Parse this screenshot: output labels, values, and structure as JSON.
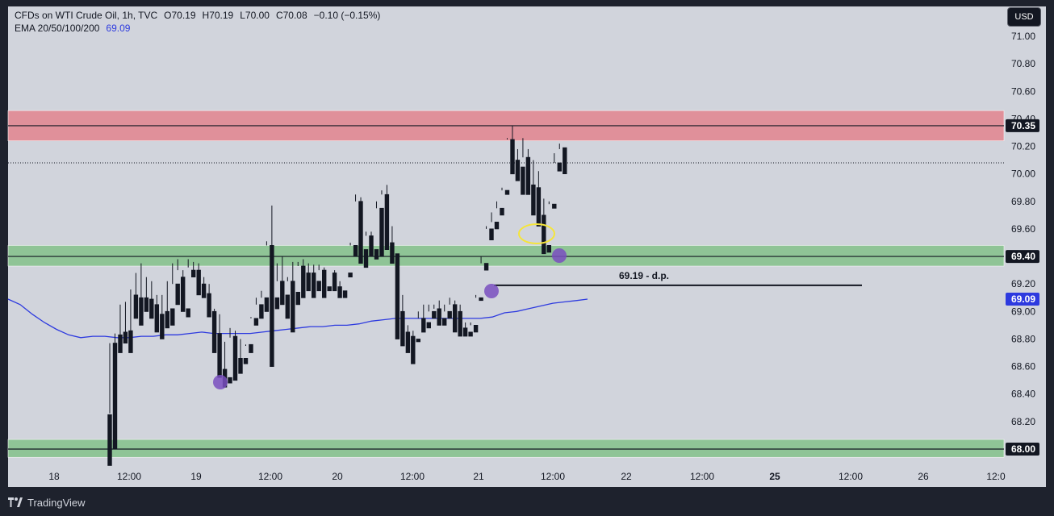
{
  "header": {
    "symbol_line": "CFDs on WTI Crude Oil, 1h, TVC",
    "open": "O70.19",
    "high": "H70.19",
    "low": "L70.00",
    "close": "C70.08",
    "change": "−0.10 (−0.15%)",
    "indicator_name": "EMA 20/50/100/200",
    "indicator_value": "69.09"
  },
  "currency_button": "USD",
  "brand": "TradingView",
  "colors": {
    "background": "#d1d4dc",
    "frame": "#1e222d",
    "resistance_zone": "#e0909a",
    "support_zone": "#8fc496",
    "ema": "#2d3adf",
    "marker": "#7a4fc0",
    "highlight": "#f5e53a"
  },
  "price_labels": {
    "resistance": "70.35",
    "support": "69.40",
    "ema": "69.09",
    "floor": "68.00"
  },
  "annotation": {
    "text": "69.19 - d.p."
  },
  "chart_data": {
    "type": "candlestick",
    "ylim": [
      67.88,
      71.12
    ],
    "yticks": [
      "71.00",
      "70.80",
      "70.60",
      "70.40",
      "70.20",
      "70.00",
      "69.80",
      "69.60",
      "69.40",
      "69.20",
      "69.00",
      "68.80",
      "68.60",
      "68.40",
      "68.20",
      "68.00"
    ],
    "xticks": [
      {
        "label": "18",
        "bold": false
      },
      {
        "label": "12:00",
        "bold": false
      },
      {
        "label": "19",
        "bold": false
      },
      {
        "label": "12:00",
        "bold": false
      },
      {
        "label": "20",
        "bold": false
      },
      {
        "label": "12:00",
        "bold": false
      },
      {
        "label": "21",
        "bold": false
      },
      {
        "label": "12:00",
        "bold": false
      },
      {
        "label": "22",
        "bold": false
      },
      {
        "label": "12:00",
        "bold": false
      },
      {
        "label": "25",
        "bold": true
      },
      {
        "label": "12:00",
        "bold": false
      },
      {
        "label": "26",
        "bold": false
      },
      {
        "label": "12:0",
        "bold": false
      }
    ],
    "zones": [
      {
        "name": "resistance",
        "from": 70.24,
        "to": 70.46,
        "line": 70.35
      },
      {
        "name": "support",
        "from": 69.33,
        "to": 69.48,
        "line": 69.4
      },
      {
        "name": "floor",
        "from": 67.94,
        "to": 68.07,
        "line": 68.0
      }
    ],
    "current_price": 70.08,
    "dp_level": 69.19,
    "candles": [
      [
        68.25,
        68.77,
        68.26,
        67.88
      ],
      [
        68.77,
        68.84,
        68.75,
        68.0
      ],
      [
        68.83,
        69.05,
        68.79,
        68.7
      ],
      [
        68.85,
        69.07,
        68.85,
        68.77
      ],
      [
        68.86,
        69.16,
        68.84,
        68.7
      ],
      [
        69.12,
        69.28,
        69.1,
        68.95
      ],
      [
        69.1,
        69.35,
        69.08,
        68.9
      ],
      [
        69.1,
        69.25,
        69.07,
        69.0
      ],
      [
        69.09,
        69.22,
        69.05,
        68.95
      ],
      [
        69.05,
        69.12,
        68.9,
        68.85
      ],
      [
        68.98,
        69.12,
        68.88,
        68.8
      ],
      [
        69.0,
        69.22,
        69.0,
        68.88
      ],
      [
        69.02,
        69.35,
        69.2,
        68.9
      ],
      [
        69.2,
        69.38,
        69.3,
        69.05
      ],
      [
        69.25,
        69.3,
        69.05,
        69.0
      ],
      [
        69.02,
        69.38,
        69.32,
        68.96
      ],
      [
        69.3,
        69.36,
        69.28,
        69.25
      ],
      [
        69.3,
        69.35,
        69.2,
        69.12
      ],
      [
        69.2,
        69.25,
        69.14,
        69.1
      ],
      [
        69.13,
        69.2,
        69.0,
        68.96
      ],
      [
        69.0,
        69.02,
        68.84,
        68.7
      ],
      [
        68.84,
        68.98,
        68.56,
        68.52
      ],
      [
        68.58,
        68.78,
        68.5,
        68.45
      ],
      [
        68.52,
        68.88,
        68.81,
        68.48
      ],
      [
        68.82,
        68.86,
        68.66,
        68.5
      ],
      [
        68.66,
        68.8,
        68.66,
        68.55
      ],
      [
        68.66,
        68.75,
        68.76,
        68.62
      ],
      [
        68.76,
        68.96,
        68.95,
        68.7
      ],
      [
        68.95,
        69.1,
        69.05,
        68.9
      ],
      [
        69.05,
        69.15,
        69.1,
        68.95
      ],
      [
        69.1,
        69.51,
        69.48,
        69.0
      ],
      [
        69.48,
        69.77,
        69.1,
        68.6
      ],
      [
        69.1,
        69.35,
        69.22,
        69.02
      ],
      [
        69.22,
        69.4,
        69.12,
        69.05
      ],
      [
        69.12,
        69.25,
        69.22,
        68.95
      ],
      [
        69.22,
        69.36,
        69.14,
        68.85
      ],
      [
        69.14,
        69.36,
        69.33,
        69.05
      ],
      [
        69.33,
        69.38,
        69.28,
        69.1
      ],
      [
        69.28,
        69.35,
        69.28,
        69.15
      ],
      [
        69.28,
        69.34,
        69.22,
        69.1
      ],
      [
        69.22,
        69.34,
        69.3,
        69.15
      ],
      [
        69.3,
        69.32,
        69.18,
        69.1
      ],
      [
        69.18,
        69.3,
        69.3,
        69.15
      ],
      [
        69.28,
        69.3,
        69.18,
        69.15
      ],
      [
        69.18,
        69.22,
        69.15,
        69.1
      ],
      [
        69.15,
        69.28,
        69.28,
        69.1
      ],
      [
        69.28,
        69.5,
        69.48,
        69.25
      ],
      [
        69.48,
        69.85,
        69.8,
        69.4
      ],
      [
        69.8,
        69.83,
        69.45,
        69.35
      ],
      [
        69.45,
        69.58,
        69.55,
        69.32
      ],
      [
        69.55,
        69.58,
        69.45,
        69.4
      ],
      [
        69.45,
        69.8,
        69.75,
        69.38
      ],
      [
        69.75,
        69.88,
        69.85,
        69.4
      ],
      [
        69.85,
        69.92,
        69.5,
        69.45
      ],
      [
        69.5,
        69.62,
        69.42,
        69.35
      ],
      [
        69.42,
        69.42,
        69.0,
        68.8
      ],
      [
        69.0,
        69.12,
        68.85,
        68.75
      ],
      [
        68.85,
        68.9,
        68.82,
        68.7
      ],
      [
        68.82,
        68.86,
        68.8,
        68.62
      ],
      [
        68.8,
        69.0,
        68.95,
        68.78
      ],
      [
        68.95,
        69.05,
        68.92,
        68.85
      ],
      [
        68.92,
        69.05,
        69.0,
        68.88
      ],
      [
        69.0,
        69.05,
        69.02,
        68.95
      ],
      [
        69.02,
        69.08,
        68.95,
        68.9
      ],
      [
        68.95,
        69.05,
        69.0,
        68.9
      ],
      [
        69.0,
        69.1,
        69.05,
        68.95
      ],
      [
        69.05,
        69.08,
        69.0,
        68.85
      ],
      [
        69.0,
        69.05,
        68.88,
        68.82
      ],
      [
        68.88,
        68.92,
        68.85,
        68.82
      ],
      [
        68.85,
        68.92,
        68.9,
        68.82
      ],
      [
        68.9,
        69.12,
        69.1,
        68.85
      ],
      [
        69.1,
        69.4,
        69.35,
        69.08
      ],
      [
        69.35,
        69.62,
        69.6,
        69.3
      ],
      [
        69.6,
        69.72,
        69.65,
        69.52
      ],
      [
        69.65,
        69.8,
        69.75,
        69.6
      ],
      [
        69.75,
        69.9,
        69.88,
        69.7
      ],
      [
        69.88,
        70.26,
        70.25,
        69.85
      ],
      [
        70.25,
        70.35,
        70.1,
        70.0
      ],
      [
        70.1,
        70.18,
        70.05,
        69.95
      ],
      [
        70.05,
        70.26,
        70.12,
        69.85
      ],
      [
        70.12,
        70.18,
        69.92,
        69.85
      ],
      [
        69.92,
        70.1,
        69.9,
        69.7
      ],
      [
        69.9,
        70.02,
        69.7,
        69.62
      ],
      [
        69.7,
        69.82,
        69.48,
        69.42
      ],
      [
        69.48,
        69.8,
        69.78,
        69.43
      ],
      [
        69.78,
        70.15,
        70.08,
        69.75
      ],
      [
        70.08,
        70.22,
        70.18,
        70.02
      ],
      [
        70.19,
        70.19,
        70.08,
        70.0
      ]
    ],
    "ema": [
      [
        0,
        69.09
      ],
      [
        15,
        69.05
      ],
      [
        30,
        68.98
      ],
      [
        45,
        68.92
      ],
      [
        60,
        68.87
      ],
      [
        75,
        68.83
      ],
      [
        90,
        68.81
      ],
      [
        105,
        68.82
      ],
      [
        120,
        68.82
      ],
      [
        135,
        68.81
      ],
      [
        150,
        68.81
      ],
      [
        165,
        68.82
      ],
      [
        180,
        68.82
      ],
      [
        195,
        68.83
      ],
      [
        210,
        68.83
      ],
      [
        225,
        68.84
      ],
      [
        240,
        68.85
      ],
      [
        255,
        68.84
      ],
      [
        270,
        68.84
      ],
      [
        285,
        68.84
      ],
      [
        300,
        68.84
      ],
      [
        315,
        68.85
      ],
      [
        330,
        68.86
      ],
      [
        345,
        68.87
      ],
      [
        360,
        68.88
      ],
      [
        375,
        68.89
      ],
      [
        390,
        68.89
      ],
      [
        405,
        68.9
      ],
      [
        420,
        68.9
      ],
      [
        435,
        68.91
      ],
      [
        450,
        68.93
      ],
      [
        465,
        68.94
      ],
      [
        480,
        68.95
      ],
      [
        495,
        68.95
      ],
      [
        510,
        68.95
      ],
      [
        525,
        68.95
      ],
      [
        540,
        68.95
      ],
      [
        555,
        68.95
      ],
      [
        570,
        68.95
      ],
      [
        585,
        68.95
      ],
      [
        600,
        68.96
      ],
      [
        615,
        68.99
      ],
      [
        630,
        69.0
      ],
      [
        645,
        69.02
      ],
      [
        660,
        69.04
      ],
      [
        675,
        69.06
      ],
      [
        690,
        69.07
      ],
      [
        705,
        69.08
      ],
      [
        718,
        69.09
      ]
    ]
  }
}
